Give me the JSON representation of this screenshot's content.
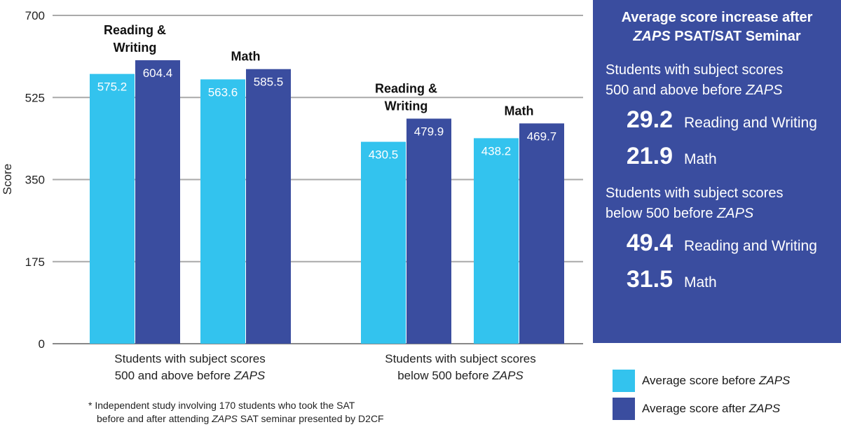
{
  "chart_data": {
    "type": "bar",
    "ylabel": "Score",
    "ylim": [
      0,
      700
    ],
    "yticks": [
      0,
      175,
      350,
      525,
      700
    ],
    "grid": true,
    "groups": [
      {
        "label": "Students with subject scores",
        "label_line2": "500 and above before",
        "label_italic": "ZAPS",
        "subgroups": [
          {
            "title_lines": [
              "Reading &",
              "Writing"
            ],
            "before": 575.2,
            "after": 604.4
          },
          {
            "title_lines": [
              "Math"
            ],
            "before": 563.6,
            "after": 585.5
          }
        ]
      },
      {
        "label": "Students with subject scores",
        "label_line2": "below 500 before",
        "label_italic": "ZAPS",
        "subgroups": [
          {
            "title_lines": [
              "Reading &",
              "Writing"
            ],
            "before": 430.5,
            "after": 479.9
          },
          {
            "title_lines": [
              "Math"
            ],
            "before": 438.2,
            "after": 469.7
          }
        ]
      }
    ],
    "series": [
      {
        "name": "Average score before ZAPS",
        "color": "#33c3ee"
      },
      {
        "name": "Average score after ZAPS",
        "color": "#3a4d9f"
      }
    ]
  },
  "panel": {
    "title_line1": "Average score increase after",
    "title_italic": "ZAPS",
    "title_line2_rest": " PSAT/SAT Seminar",
    "groups": [
      {
        "label_line1": "Students with subject scores",
        "label_line2": "500 and above before ",
        "label_italic": "ZAPS",
        "stats": [
          {
            "value": "29.2",
            "label": "Reading and Writing"
          },
          {
            "value": "21.9",
            "label": "Math"
          }
        ]
      },
      {
        "label_line1": "Students with subject scores",
        "label_line2": "below 500 before ",
        "label_italic": "ZAPS",
        "stats": [
          {
            "value": "49.4",
            "label": "Reading and Writing"
          },
          {
            "value": "31.5",
            "label": "Math"
          }
        ]
      }
    ]
  },
  "legend": {
    "before_prefix": "Average score before ",
    "after_prefix": "Average score after ",
    "italic": "ZAPS",
    "before_color": "#33c3ee",
    "after_color": "#3a4d9f"
  },
  "footnote": {
    "line1": "* Independent study involving 170 students who took the SAT",
    "line2_pre": "before and after attending ",
    "line2_italic": "ZAPS",
    "line2_post": " SAT seminar presented by D2CF"
  }
}
